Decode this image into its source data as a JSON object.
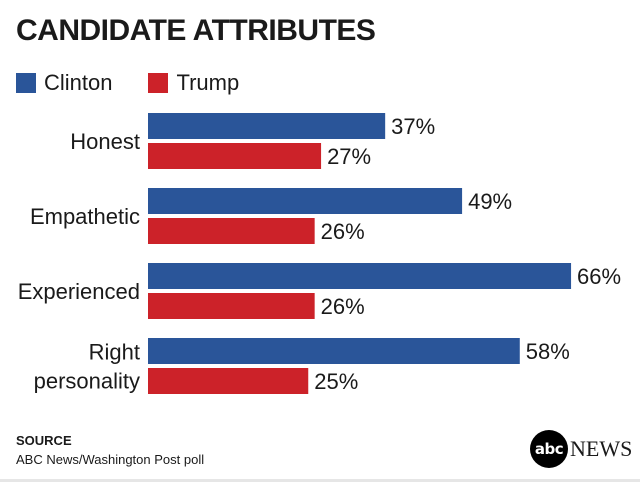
{
  "chart_data": {
    "type": "bar",
    "orientation": "horizontal",
    "title": "CANDIDATE ATTRIBUTES",
    "categories": [
      [
        "Honest"
      ],
      [
        "Empathetic"
      ],
      [
        "Experienced"
      ],
      [
        "Right",
        "personality"
      ]
    ],
    "series": [
      {
        "name": "Clinton",
        "color": "#2a5599",
        "values": [
          37,
          49,
          66,
          58
        ]
      },
      {
        "name": "Trump",
        "color": "#cc2229",
        "values": [
          27,
          26,
          26,
          25
        ]
      }
    ],
    "value_suffix": "%",
    "xlim": [
      0,
      66
    ]
  },
  "legend": {
    "clinton": "Clinton",
    "trump": "Trump"
  },
  "source": {
    "label": "SOURCE",
    "text": "ABC News/Washington Post poll"
  },
  "brand": {
    "abc": "abc",
    "news": "NEWS"
  },
  "colors": {
    "clinton": "#2a5599",
    "trump": "#cc2229"
  }
}
